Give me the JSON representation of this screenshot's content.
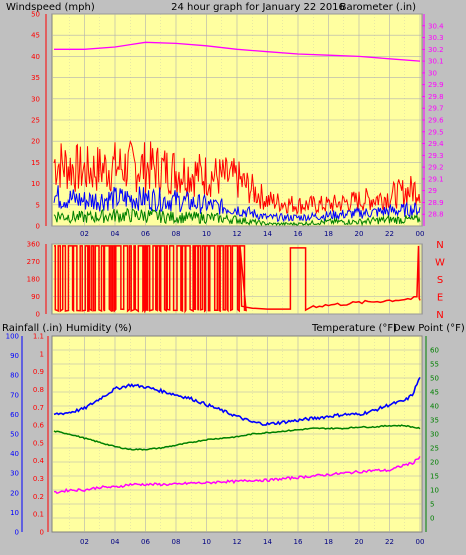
{
  "page": {
    "title": "24 hour graph for   January 22 2016",
    "background": "#c0c0c0",
    "plot_background": "#ffffa0",
    "grid_color": "#b0b0b0"
  },
  "hours": [
    "02",
    "04",
    "06",
    "08",
    "10",
    "12",
    "14",
    "16",
    "18",
    "20",
    "22",
    "00"
  ],
  "chart_data": [
    {
      "type": "line",
      "name": "wind-barometer",
      "ylabel_left": "Windspeed (mph)",
      "ylabel_right": "Barometer (.in)",
      "ylim_left": [
        0,
        50
      ],
      "ylim_right": [
        28.7,
        30.5
      ],
      "yticks_left": [
        "0",
        "5",
        "10",
        "15",
        "20",
        "25",
        "30",
        "35",
        "40",
        "45",
        "50"
      ],
      "yticks_right": [
        "28.8",
        "28.9",
        "29",
        "29.1",
        "29.2",
        "29.3",
        "29.4",
        "29.5",
        "29.6",
        "29.7",
        "29.8",
        "29.9",
        "30",
        "30.1",
        "30.2",
        "30.3",
        "30.4"
      ],
      "x": [
        0,
        2,
        4,
        6,
        8,
        10,
        12,
        14,
        16,
        18,
        20,
        22,
        24
      ],
      "barometer": [
        30.2,
        30.2,
        30.22,
        30.26,
        30.25,
        30.23,
        30.2,
        30.18,
        30.16,
        30.15,
        30.14,
        30.12,
        30.1
      ],
      "gust_mean": [
        15,
        13,
        14,
        14,
        13,
        12,
        11,
        6,
        5,
        5,
        6,
        7,
        9
      ],
      "avg_mean": [
        7,
        6,
        6.5,
        6.5,
        6,
        5,
        4,
        2,
        2,
        2.5,
        3,
        3.5,
        4
      ],
      "min_mean": [
        2.5,
        2,
        2.5,
        2.5,
        2,
        2,
        1.5,
        0.5,
        0.5,
        1,
        1,
        1.5,
        1.5
      ],
      "colors": {
        "gust": "#ff0000",
        "avg": "#0000ff",
        "min": "#008000",
        "barometer": "#ff00ff",
        "left_axis": "#ff0000",
        "right_axis": "#ff00ff"
      }
    },
    {
      "type": "line",
      "name": "wind-direction",
      "ylim": [
        0,
        360
      ],
      "yticks": [
        "0",
        "90",
        "180",
        "270",
        "360"
      ],
      "compass_labels": [
        "N",
        "W",
        "S",
        "E",
        "N"
      ],
      "color": "#ff0000"
    },
    {
      "type": "line",
      "name": "rain-humidity-temperature",
      "ylabel_rain": "Rainfall (.in)",
      "ylabel_humidity": "Humidity (%)",
      "ylabel_temperature": "Temperature (°F)",
      "ylabel_dewpoint": "Dew Point (°F)",
      "ylim_rain": [
        0,
        1.1
      ],
      "ylim_humidity": [
        0,
        100
      ],
      "ylim_temperature": [
        -5,
        65
      ],
      "yticks_rain": [
        "0",
        "0.1",
        "0.2",
        "0.3",
        "0.4",
        "0.5",
        "0.6",
        "0.7",
        "0.8",
        "0.9",
        "1",
        "1.1"
      ],
      "yticks_humidity": [
        "0",
        "10",
        "20",
        "30",
        "40",
        "50",
        "60",
        "70",
        "80",
        "90",
        "100"
      ],
      "yticks_temperature": [
        "0",
        "5",
        "10",
        "15",
        "20",
        "25",
        "30",
        "35",
        "40",
        "45",
        "50",
        "55",
        "60"
      ],
      "x": [
        0,
        1,
        2,
        3,
        4,
        5,
        6,
        7,
        8,
        9,
        10,
        11,
        12,
        13,
        14,
        15,
        16,
        17,
        18,
        19,
        20,
        21,
        22,
        23,
        23.5,
        24
      ],
      "humidity": [
        60,
        61,
        63,
        68,
        73,
        75,
        74,
        72,
        70,
        68,
        65,
        62,
        59,
        56,
        55,
        56,
        57,
        58,
        59,
        60,
        60,
        62,
        65,
        67,
        70,
        79
      ],
      "temperature": [
        31,
        30,
        28.5,
        27,
        25.5,
        24.5,
        24.5,
        25,
        26,
        27,
        28,
        28.5,
        29,
        30,
        30.5,
        31,
        31.5,
        32,
        32,
        32,
        32.5,
        32.5,
        33,
        33,
        32.5,
        32
      ],
      "dewpoint": [
        9,
        10,
        10,
        11,
        11,
        12,
        12,
        12,
        12,
        12.5,
        12.5,
        13,
        13,
        13.5,
        13.5,
        14,
        14.5,
        15,
        15.5,
        16,
        16.5,
        17,
        17,
        19,
        19.5,
        22
      ],
      "colors": {
        "humidity": "#0000ff",
        "temperature": "#008000",
        "dewpoint": "#ff00ff",
        "rain_axis": "#ff0000",
        "humidity_axis": "#0000ff",
        "temperature_axis": "#008000"
      }
    }
  ]
}
